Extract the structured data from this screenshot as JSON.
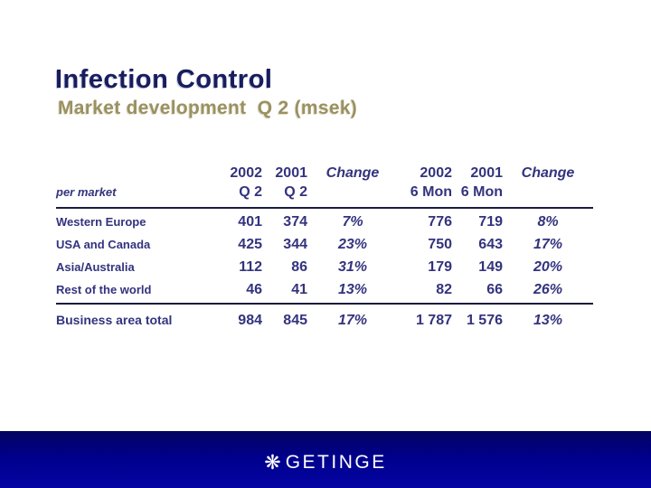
{
  "slide": {
    "title": "Infection Control",
    "subtitle": "Market development  Q 2 (msek)"
  },
  "table": {
    "header": {
      "row1": {
        "c1": "2002",
        "c2": "2001",
        "c3": "Change",
        "c4": "2002",
        "c5": "2001",
        "c6": "Change"
      },
      "row2": {
        "c0": "per market",
        "c1": "Q 2",
        "c2": "Q 2",
        "c4": "6 Mon",
        "c5": "6 Mon"
      }
    },
    "rows": [
      {
        "label": "Western Europe",
        "q2_2002": "401",
        "q2_2001": "374",
        "q2_change": "7%",
        "mon6_2002": "776",
        "mon6_2001": "719",
        "mon6_change": "8%"
      },
      {
        "label": "USA and Canada",
        "q2_2002": "425",
        "q2_2001": "344",
        "q2_change": "23%",
        "mon6_2002": "750",
        "mon6_2001": "643",
        "mon6_change": "17%"
      },
      {
        "label": "Asia/Australia",
        "q2_2002": "112",
        "q2_2001": "86",
        "q2_change": "31%",
        "mon6_2002": "179",
        "mon6_2001": "149",
        "mon6_change": "20%"
      },
      {
        "label": "Rest of the world",
        "q2_2002": "46",
        "q2_2001": "41",
        "q2_change": "13%",
        "mon6_2002": "82",
        "mon6_2001": "66",
        "mon6_change": "26%"
      }
    ],
    "total": {
      "label": "Business area total",
      "q2_2002": "984",
      "q2_2001": "845",
      "q2_change": "17%",
      "mon6_2002": "1 787",
      "mon6_2001": "1 576",
      "mon6_change": "13%"
    }
  },
  "footer": {
    "logo_symbol": "❋",
    "logo_text": "GETINGE"
  },
  "colors": {
    "title_navy": "#171d5e",
    "subtitle_tan": "#9a9162",
    "table_indigo": "#33337e",
    "footer_navy": "#00008b"
  }
}
